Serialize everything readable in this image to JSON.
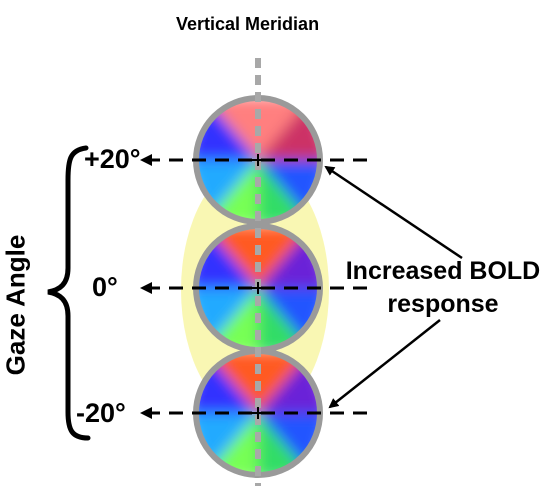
{
  "title": "Vertical Meridian",
  "axis_label": "Gaze Angle",
  "ticks": {
    "top": "+20°",
    "middle": "0°",
    "bottom": "-20°"
  },
  "annotation": {
    "line1": "Increased BOLD",
    "line2": "response"
  },
  "colors": {
    "highlight_ellipse": "#f8f6a6",
    "circle_border": "#9a9a9a",
    "meridian": "#a8a8a8",
    "wedge_colors": [
      "#ff7f7f",
      "#ff5a2a",
      "#3344ff",
      "#6a2bd9",
      "#33ff33",
      "#2fd8a8"
    ]
  }
}
